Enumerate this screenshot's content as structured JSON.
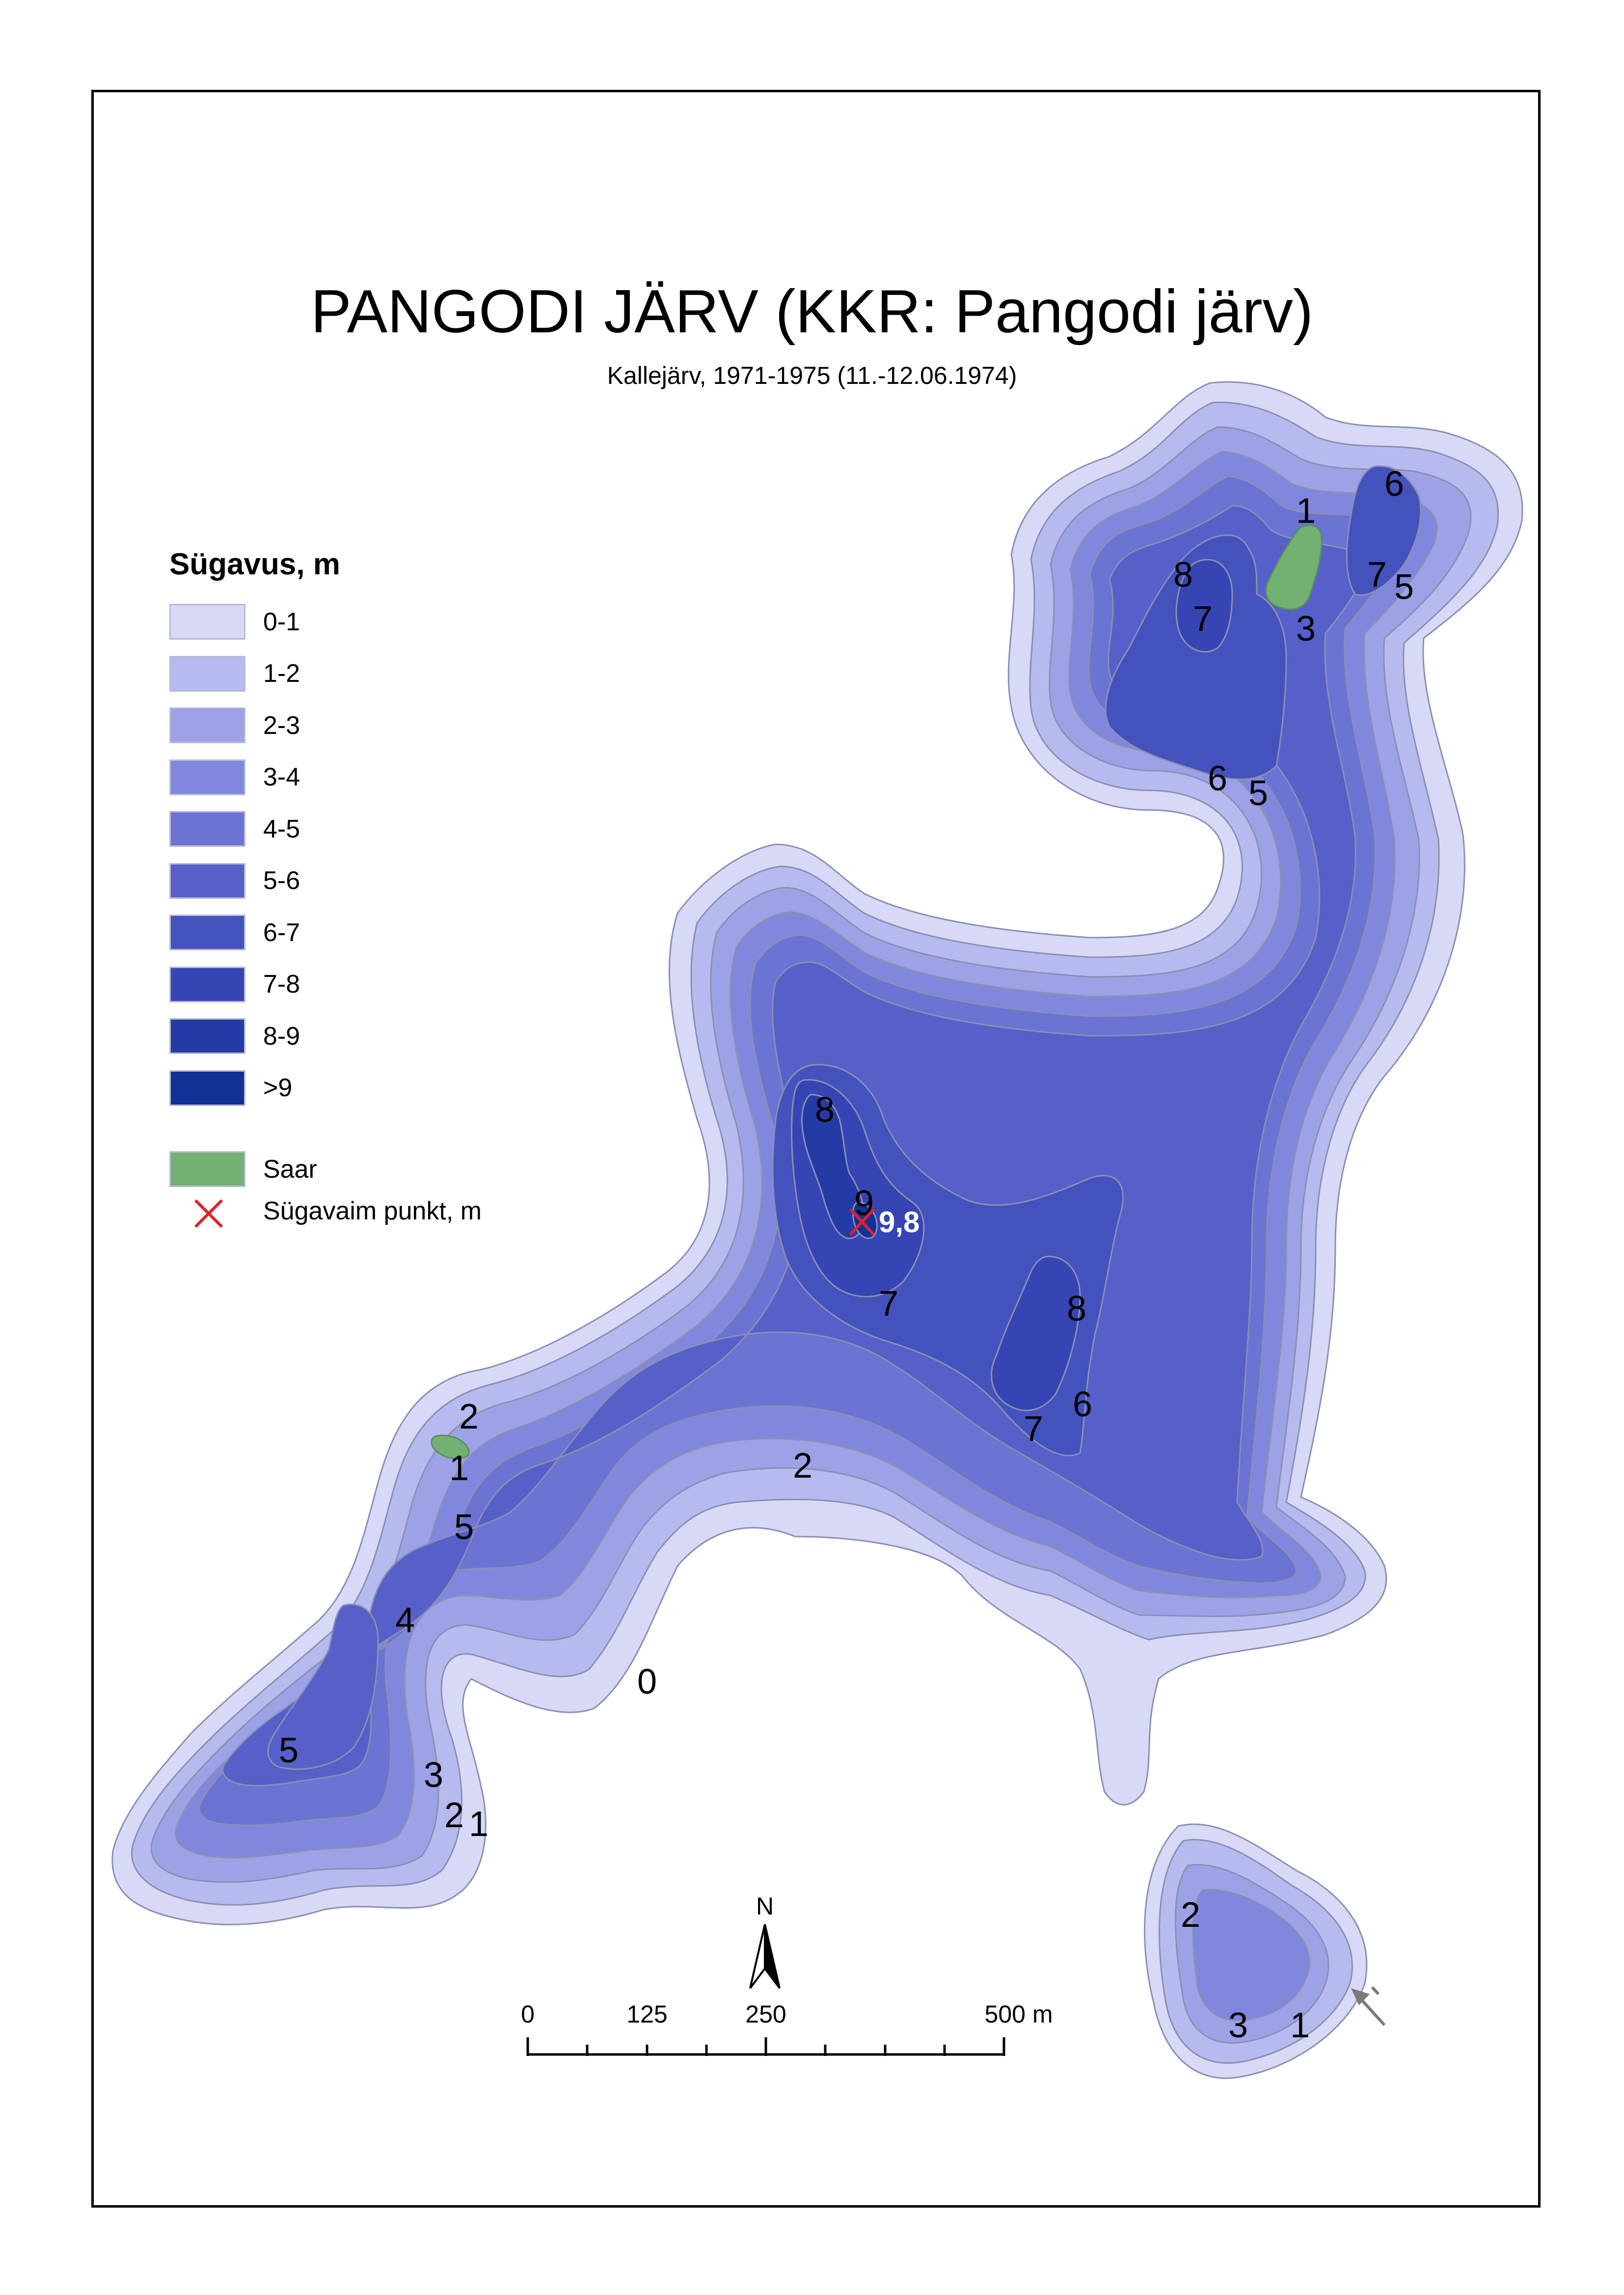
{
  "title": "PANGODI JÄRV (KKR: Pangodi järv)",
  "subtitle": "Kallejärv, 1971-1975 (11.-12.06.1974)",
  "legend": {
    "title": "Sügavus, m",
    "classes": [
      {
        "label": "0-1",
        "color": "#d7d9f6"
      },
      {
        "label": "1-2",
        "color": "#b7baee"
      },
      {
        "label": "2-3",
        "color": "#9da2e6"
      },
      {
        "label": "3-4",
        "color": "#8187dc"
      },
      {
        "label": "4-5",
        "color": "#6b73d3"
      },
      {
        "label": "5-6",
        "color": "#5660c8"
      },
      {
        "label": "6-7",
        "color": "#4452bd"
      },
      {
        "label": "7-8",
        "color": "#3645b3"
      },
      {
        "label": "8-9",
        "color": "#243aa4"
      },
      {
        "label": ">9",
        "color": "#113196"
      }
    ],
    "island": {
      "label": "Saar",
      "color": "#72b171"
    },
    "deepest_point": {
      "label": "Sügavaim punkt, m",
      "color": "#e0202a"
    }
  },
  "deepest_value": "9,8",
  "depth_labels": [
    "0",
    "1",
    "2",
    "3",
    "4",
    "5",
    "6",
    "7",
    "8",
    "9"
  ],
  "north_label": "N",
  "scalebar": {
    "ticks": [
      "0",
      "125",
      "250",
      "500 m"
    ]
  }
}
